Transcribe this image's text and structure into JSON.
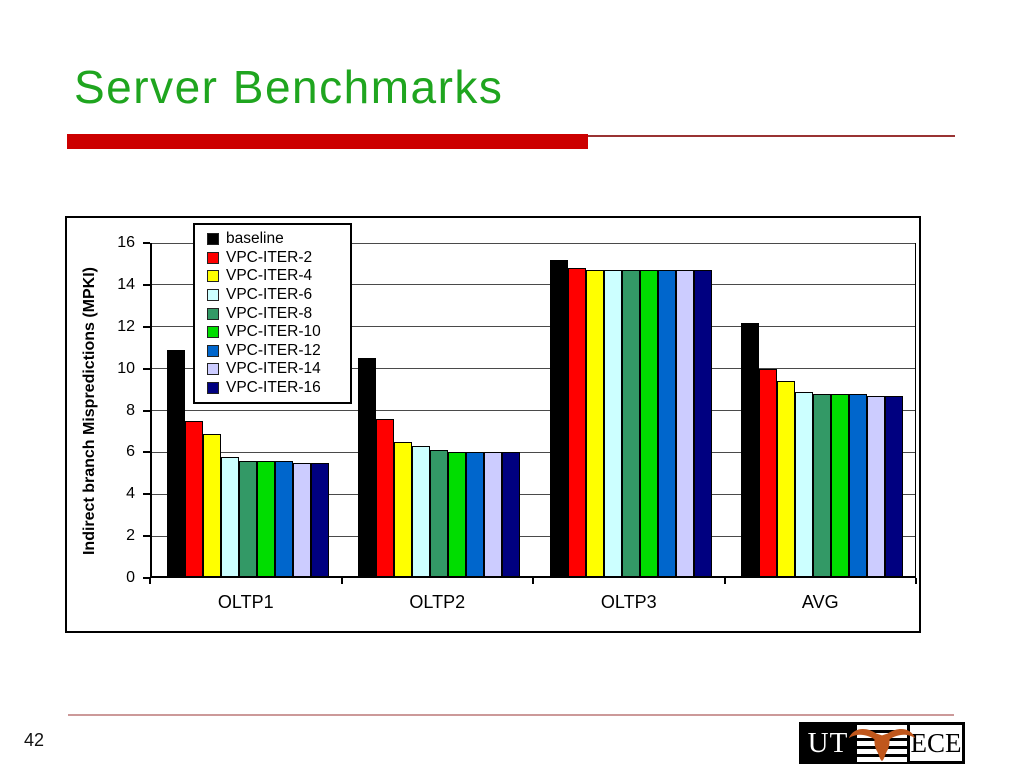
{
  "slide": {
    "title": "Server Benchmarks",
    "page_number": "42",
    "title_color": "#1FA51F",
    "rule_thick_color": "#CC0000",
    "rule_thin_color": "#993333",
    "footer_rule_color": "#CC9999"
  },
  "logo": {
    "left_text": "UT",
    "right_text": "ECE",
    "longhorn_color": "#C0571C"
  },
  "chart_data": {
    "type": "bar",
    "title": "",
    "xlabel": "",
    "ylabel": "Indirect branch Mispredictions (MPKI)",
    "ylim": [
      0,
      16
    ],
    "yticks": [
      0,
      2,
      4,
      6,
      8,
      10,
      12,
      14,
      16
    ],
    "grid": true,
    "legend_position": "upper-left-inside",
    "categories": [
      "OLTP1",
      "OLTP2",
      "OLTP3",
      "AVG"
    ],
    "series": [
      {
        "name": "baseline",
        "color": "#000000",
        "values": [
          10.8,
          10.4,
          15.1,
          12.1
        ]
      },
      {
        "name": "VPC-ITER-2",
        "color": "#FF0000",
        "values": [
          7.4,
          7.5,
          14.7,
          9.9
        ]
      },
      {
        "name": "VPC-ITER-4",
        "color": "#FFFF00",
        "values": [
          6.8,
          6.4,
          14.6,
          9.3
        ]
      },
      {
        "name": "VPC-ITER-6",
        "color": "#CCFFFF",
        "values": [
          5.7,
          6.2,
          14.6,
          8.8
        ]
      },
      {
        "name": "VPC-ITER-8",
        "color": "#339966",
        "values": [
          5.5,
          6.0,
          14.6,
          8.7
        ]
      },
      {
        "name": "VPC-ITER-10",
        "color": "#00DD00",
        "values": [
          5.5,
          5.9,
          14.6,
          8.7
        ]
      },
      {
        "name": "VPC-ITER-12",
        "color": "#0066CC",
        "values": [
          5.5,
          5.9,
          14.6,
          8.7
        ]
      },
      {
        "name": "VPC-ITER-14",
        "color": "#CCCCFF",
        "values": [
          5.4,
          5.9,
          14.6,
          8.6
        ]
      },
      {
        "name": "VPC-ITER-16",
        "color": "#000080",
        "values": [
          5.4,
          5.9,
          14.6,
          8.6
        ]
      }
    ]
  }
}
